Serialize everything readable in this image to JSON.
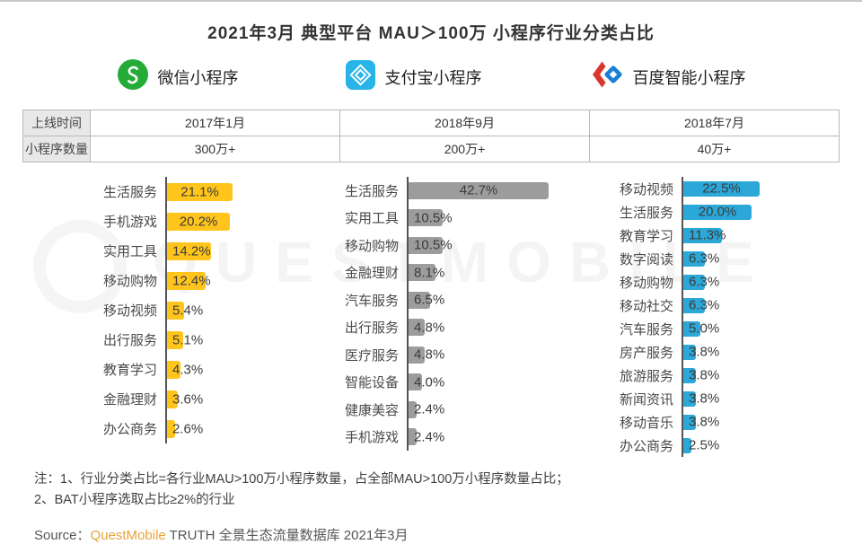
{
  "title": "2021年3月 典型平台 MAU＞100万 小程序行业分类占比",
  "platforms": [
    {
      "name": "微信小程序",
      "brand_color": "#25AC38"
    },
    {
      "name": "支付宝小程序",
      "brand_color": "#28B4E8"
    },
    {
      "name": "百度智能小程序",
      "brand_color": "#1B7FD4"
    }
  ],
  "table": {
    "row_headers": [
      "上线时间",
      "小程序数量"
    ],
    "rows": [
      [
        "2017年1月",
        "2018年9月",
        "2018年7月"
      ],
      [
        "300万+",
        "200万+",
        "40万+"
      ]
    ]
  },
  "chart_data": [
    {
      "type": "bar",
      "orientation": "horizontal",
      "platform": "微信小程序",
      "bar_color": "#FFC51C",
      "unit": "%",
      "categories": [
        "生活服务",
        "手机游戏",
        "实用工具",
        "移动购物",
        "移动视频",
        "出行服务",
        "教育学习",
        "金融理财",
        "办公商务"
      ],
      "values": [
        21.1,
        20.2,
        14.2,
        12.4,
        5.4,
        5.1,
        4.3,
        3.6,
        2.6
      ]
    },
    {
      "type": "bar",
      "orientation": "horizontal",
      "platform": "支付宝小程序",
      "bar_color": "#9C9C9C",
      "unit": "%",
      "categories": [
        "生活服务",
        "实用工具",
        "移动购物",
        "金融理财",
        "汽车服务",
        "出行服务",
        "医疗服务",
        "智能设备",
        "健康美容",
        "手机游戏"
      ],
      "values": [
        42.7,
        10.5,
        10.5,
        8.1,
        6.5,
        4.8,
        4.8,
        4.0,
        2.4,
        2.4
      ]
    },
    {
      "type": "bar",
      "orientation": "horizontal",
      "platform": "百度智能小程序",
      "bar_color": "#2BA7D8",
      "unit": "%",
      "categories": [
        "移动视频",
        "生活服务",
        "教育学习",
        "数字阅读",
        "移动购物",
        "移动社交",
        "汽车服务",
        "房产服务",
        "旅游服务",
        "新闻资讯",
        "移动音乐",
        "办公商务"
      ],
      "values": [
        22.5,
        20.0,
        11.3,
        6.3,
        6.3,
        6.3,
        5.0,
        3.8,
        3.8,
        3.8,
        3.8,
        2.5
      ]
    }
  ],
  "notes": [
    "注：1、行业分类占比=各行业MAU>100万小程序数量，占全部MAU>100万小程序数量占比；",
    "2、BAT小程序选取占比≥2%的行业"
  ],
  "source": {
    "prefix": "Source：",
    "brand": "QuestMobile",
    "suffix": " TRUTH 全景生态流量数据库 2021年3月"
  },
  "watermark": "QUESTMOBILE"
}
